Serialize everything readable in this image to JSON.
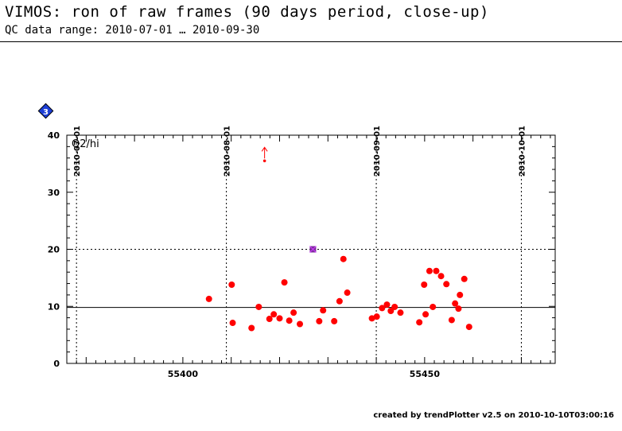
{
  "header": {
    "title": "VIMOS: ron of raw frames (90 days period, close-up)",
    "subtitle": "QC data range: 2010-07-01 … 2010-09-30"
  },
  "footer": {
    "credit": "created by trendPlotter v2.5 on 2010-10-10T03:00:16"
  },
  "badge": {
    "label": "3",
    "color": "#1d3fd6"
  },
  "chart_data": {
    "type": "scatter",
    "panel_label": "Q2/hi",
    "xlim": [
      55376,
      55477
    ],
    "ylim": [
      0,
      40
    ],
    "x_ticks": [
      55400,
      55450
    ],
    "x_tick_labels": [
      "55400",
      "55450"
    ],
    "y_ticks": [
      0,
      10,
      20,
      30,
      40
    ],
    "y_tick_labels": [
      "0",
      "10",
      "20",
      "30",
      "40"
    ],
    "date_ticks": [
      {
        "mjd": 55378,
        "label": "2010-07-01"
      },
      {
        "mjd": 55409,
        "label": "2010-08-01"
      },
      {
        "mjd": 55440,
        "label": "2010-09-01"
      },
      {
        "mjd": 55470,
        "label": "2010-10-01"
      }
    ],
    "reference_lines": {
      "nominal": 9.8,
      "upper_limit": 20
    },
    "colors": {
      "points": "#ff0000",
      "outlier": "#ff0000",
      "flagged": "#7b2d9b",
      "reference": "#000000"
    },
    "series": [
      {
        "x": [
          55405.4,
          55410.1,
          55410.3,
          55414.2,
          55415.7,
          55417.9,
          55418.8,
          55420.0,
          55421.0,
          55422.0,
          55422.9,
          55424.2,
          55428.2,
          55429.0,
          55431.3,
          55432.4,
          55433.2,
          55434.0,
          55439.1,
          55440.1,
          55441.2,
          55442.2,
          55443.0,
          55443.8,
          55445.0,
          55448.9,
          55449.9,
          55450.2,
          55451.0,
          55451.7,
          55452.4,
          55453.4,
          55454.5,
          55455.6,
          55456.3,
          55457.0,
          55457.3,
          55458.2,
          55459.2
        ],
        "y": [
          11.3,
          13.8,
          7.1,
          6.2,
          9.9,
          7.8,
          8.6,
          7.9,
          14.2,
          7.5,
          8.9,
          6.9,
          7.4,
          9.3,
          7.4,
          10.9,
          18.3,
          12.4,
          7.9,
          8.2,
          9.7,
          10.3,
          9.2,
          9.9,
          8.9,
          7.2,
          13.8,
          8.6,
          16.2,
          9.9,
          16.2,
          15.3,
          13.9,
          7.6,
          10.5,
          9.6,
          12.0,
          14.8,
          6.4
        ]
      }
    ],
    "flagged_points": [
      {
        "x": 55426.9,
        "y": 20.0
      }
    ],
    "outliers": [
      {
        "x": 55416.9,
        "y": 35.5,
        "arrow": "up"
      }
    ]
  }
}
